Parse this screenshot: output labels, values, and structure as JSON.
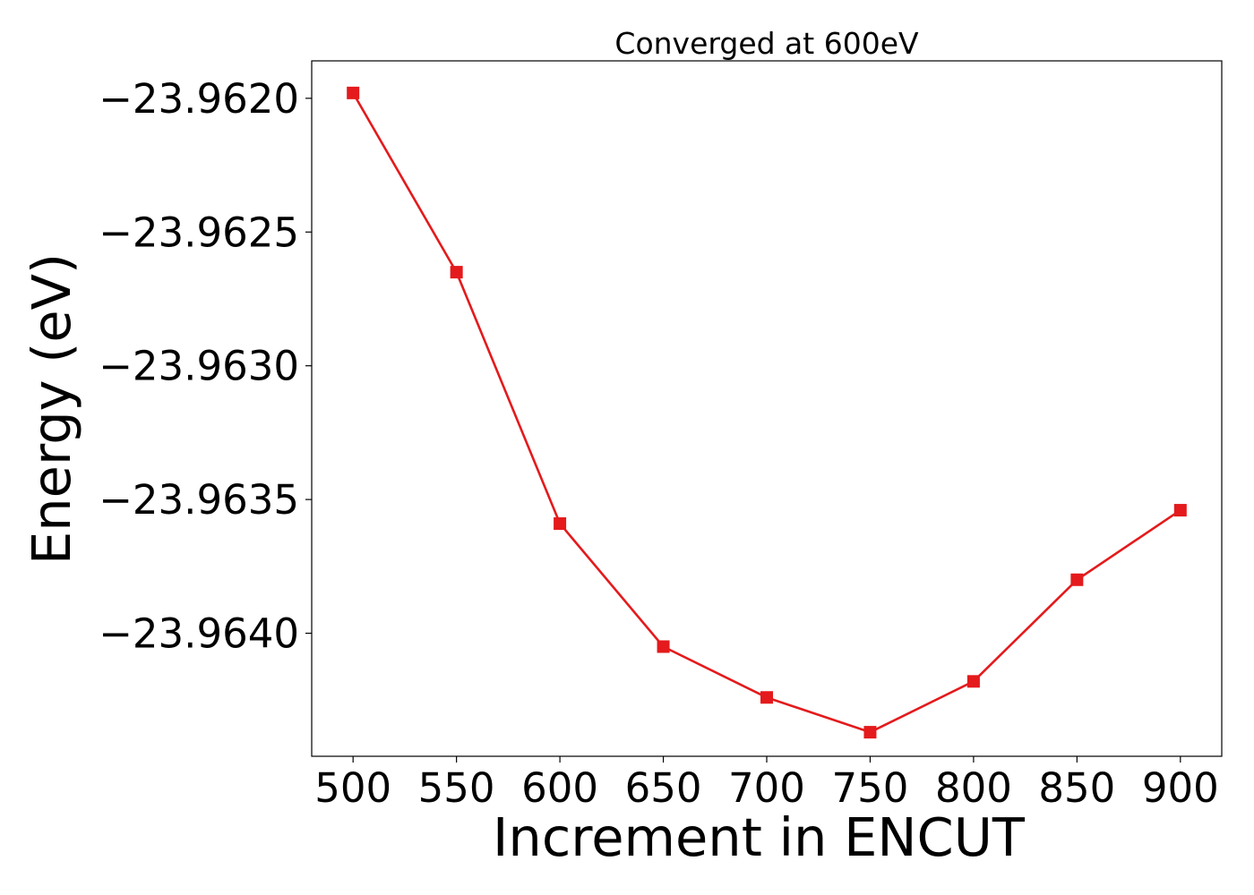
{
  "chart_data": {
    "type": "line",
    "title": "Converged at 600eV",
    "xlabel": "Increment in ENCUT",
    "ylabel": "Energy (eV)",
    "x": [
      500,
      550,
      600,
      650,
      700,
      750,
      800,
      850,
      900
    ],
    "series": [
      {
        "values": [
          -23.96198,
          -23.96265,
          -23.96359,
          -23.96405,
          -23.96424,
          -23.96437,
          -23.96418,
          -23.9638,
          -23.96354
        ],
        "color": "#e41a1c",
        "marker": "square"
      }
    ],
    "xticks": [
      500,
      550,
      600,
      650,
      700,
      750,
      800,
      850,
      900
    ],
    "xtick_labels": [
      "500",
      "550",
      "600",
      "650",
      "700",
      "750",
      "800",
      "850",
      "900"
    ],
    "yticks": [
      -23.962,
      -23.9625,
      -23.963,
      -23.9635,
      -23.964
    ],
    "ytick_labels": [
      "−23.9620",
      "−23.9625",
      "−23.9630",
      "−23.9635",
      "−23.9640"
    ],
    "xlim": [
      480,
      920
    ],
    "ylim": [
      -23.96446,
      -23.96186
    ],
    "grid": false,
    "legend": false
  }
}
